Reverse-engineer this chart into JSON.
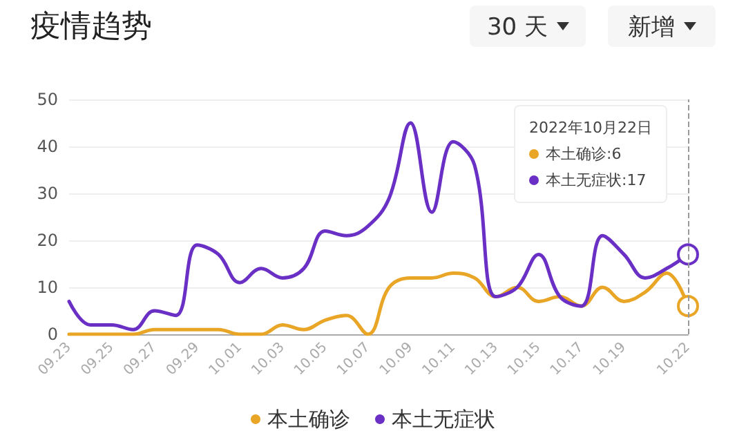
{
  "chart_data": {
    "type": "line",
    "title": "疫情趋势",
    "categories": [
      "09.23",
      null,
      "09.25",
      null,
      "09.27",
      null,
      "09.29",
      null,
      "10.01",
      null,
      "10.03",
      null,
      "10.05",
      null,
      "10.07",
      null,
      "10.09",
      null,
      "10.11",
      null,
      "10.13",
      null,
      "10.15",
      null,
      "10.17",
      null,
      "10.19",
      null,
      null,
      "10.22"
    ],
    "series": [
      {
        "name": "本土确诊",
        "color": "#e8a526",
        "values": [
          0,
          0,
          0,
          0,
          1,
          1,
          1,
          1,
          0,
          0,
          2,
          1,
          3,
          4,
          0,
          10,
          12,
          12,
          13,
          12,
          8,
          10,
          7,
          8,
          6,
          10,
          7,
          9,
          13,
          6
        ]
      },
      {
        "name": "本土无症状",
        "color": "#6a2fc4",
        "values": [
          7,
          2,
          2,
          1,
          5,
          4,
          19,
          17,
          11,
          14,
          12,
          14,
          22,
          21,
          23,
          29,
          45,
          26,
          41,
          36,
          8,
          10,
          17,
          8,
          6,
          21,
          17,
          12,
          14,
          17
        ]
      }
    ],
    "ylim": [
      0,
      50
    ],
    "yticks": [
      0,
      10,
      20,
      30,
      40,
      50
    ],
    "grid": "y",
    "legend": "bottom",
    "marker": "none",
    "line_style": "solid",
    "ref_lines": [
      {
        "axis": "x",
        "value": "10.22",
        "color": "#999999",
        "line_style": "dashed"
      }
    ],
    "annotations": [
      "30 天",
      "新增",
      "2022年10月22日",
      "本土确诊:6",
      "本土无症状:17"
    ]
  }
}
